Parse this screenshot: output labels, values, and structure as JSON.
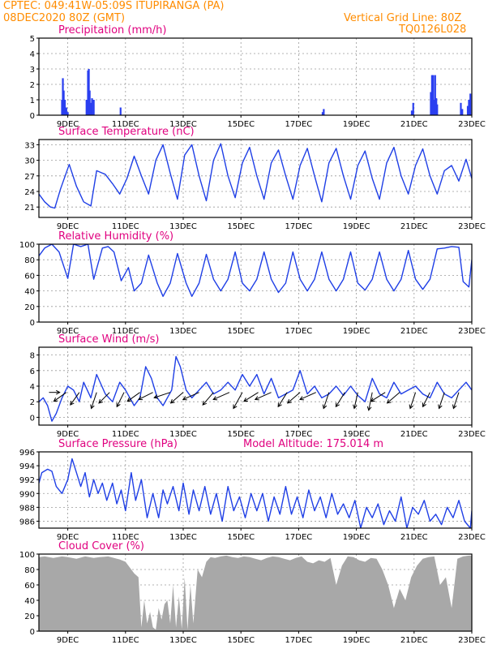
{
  "header": {
    "line1_left": "CPTEC:   049:41W-05:09S   ITUPIRANGA (PA)",
    "line2_left": "08DEC2020 80Z (GMT)",
    "line1_right": "Vertical Grid Line: 80Z",
    "line2_right": "TQ0126L028",
    "color": "#ff8c00"
  },
  "x_ticks": [
    "9DEC",
    "11DEC",
    "13DEC",
    "15DEC",
    "17DEC",
    "19DEC",
    "21DEC",
    "23DEC"
  ],
  "x_days": [
    9,
    11,
    13,
    15,
    17,
    19,
    21,
    23
  ],
  "x_range": [
    8.0,
    23.0
  ],
  "title_color": "#e0007f",
  "line_color": "#1f3fe6",
  "bar_color": "#2a3ff0",
  "cloud_color": "#a8a8a8",
  "chart_data": [
    {
      "id": "precip",
      "type": "bar",
      "title": "Precipitation (mm/h)",
      "ylim": [
        0,
        5
      ],
      "yticks": [
        "0",
        "1",
        "2",
        "3",
        "4",
        "5"
      ],
      "grid": true,
      "x_day": [
        8.8,
        8.83,
        8.86,
        8.9,
        8.95,
        9.0,
        9.65,
        9.7,
        9.73,
        9.76,
        9.8,
        9.84,
        9.9,
        10.83,
        17.83,
        17.87,
        20.92,
        20.97,
        21.58,
        21.62,
        21.66,
        21.7,
        21.73,
        21.77,
        21.8,
        22.62,
        22.67,
        22.86,
        22.9,
        22.95
      ],
      "values": [
        1.0,
        2.4,
        1.6,
        1.0,
        0.5,
        0.2,
        1.0,
        2.9,
        3.0,
        1.6,
        0.8,
        1.1,
        1.0,
        0.5,
        0.2,
        0.4,
        0.3,
        0.8,
        1.5,
        2.6,
        2.6,
        1.0,
        2.6,
        1.1,
        0.7,
        0.8,
        0.4,
        0.6,
        1.0,
        1.4
      ]
    },
    {
      "id": "temp",
      "type": "line",
      "title": "Surface Temperature (nC)",
      "ylim": [
        19,
        34
      ],
      "yticks": [
        "21",
        "24",
        "27",
        "30",
        "33"
      ],
      "grid": true,
      "x": [
        8.0,
        8.2,
        8.4,
        8.55,
        8.75,
        9.05,
        9.3,
        9.55,
        9.8,
        10.0,
        10.3,
        10.55,
        10.8,
        11.05,
        11.3,
        11.55,
        11.8,
        12.05,
        12.3,
        12.55,
        12.8,
        13.05,
        13.3,
        13.55,
        13.8,
        14.05,
        14.3,
        14.55,
        14.8,
        15.05,
        15.3,
        15.55,
        15.8,
        16.05,
        16.3,
        16.55,
        16.8,
        17.05,
        17.3,
        17.55,
        17.8,
        18.05,
        18.3,
        18.55,
        18.8,
        19.05,
        19.3,
        19.55,
        19.8,
        20.05,
        20.3,
        20.55,
        20.8,
        21.05,
        21.3,
        21.55,
        21.8,
        22.05,
        22.3,
        22.55,
        22.8,
        23.0
      ],
      "y": [
        23.5,
        22.0,
        21.0,
        20.8,
        24.5,
        29.2,
        25.0,
        22.0,
        21.2,
        28.0,
        27.3,
        25.5,
        23.5,
        26.5,
        30.8,
        27.0,
        23.5,
        30.0,
        33.0,
        27.5,
        22.5,
        31.0,
        33.0,
        27.0,
        22.2,
        30.0,
        33.2,
        27.0,
        22.8,
        29.5,
        32.5,
        27.0,
        22.5,
        29.5,
        32.0,
        27.0,
        22.5,
        29.0,
        32.3,
        27.0,
        22.0,
        29.5,
        32.3,
        27.0,
        22.5,
        29.0,
        31.8,
        26.5,
        22.5,
        29.5,
        32.5,
        27.0,
        23.5,
        29.0,
        32.2,
        27.0,
        23.5,
        28.0,
        29.0,
        26.0,
        30.2,
        26.5
      ]
    },
    {
      "id": "rh",
      "type": "line",
      "title": "Relative Humidity (%)",
      "ylim": [
        0,
        100
      ],
      "yticks": [
        "0",
        "20",
        "40",
        "60",
        "80",
        "100"
      ],
      "grid": true,
      "x": [
        8.0,
        8.2,
        8.45,
        8.7,
        9.0,
        9.2,
        9.45,
        9.7,
        9.9,
        10.2,
        10.4,
        10.6,
        10.85,
        11.1,
        11.3,
        11.55,
        11.8,
        12.1,
        12.3,
        12.55,
        12.8,
        13.1,
        13.3,
        13.55,
        13.8,
        14.05,
        14.3,
        14.55,
        14.8,
        15.05,
        15.3,
        15.55,
        15.8,
        16.05,
        16.3,
        16.55,
        16.8,
        17.05,
        17.3,
        17.55,
        17.8,
        18.05,
        18.3,
        18.55,
        18.8,
        19.05,
        19.3,
        19.55,
        19.8,
        20.05,
        20.3,
        20.55,
        20.8,
        21.05,
        21.3,
        21.55,
        21.8,
        22.05,
        22.3,
        22.55,
        22.7,
        22.9,
        23.0
      ],
      "y": [
        85,
        95,
        100,
        90,
        56,
        100,
        97,
        100,
        55,
        95,
        97,
        90,
        53,
        70,
        40,
        50,
        86,
        50,
        33,
        50,
        88,
        50,
        33,
        50,
        87,
        55,
        40,
        55,
        90,
        50,
        40,
        55,
        90,
        55,
        38,
        50,
        90,
        55,
        40,
        55,
        90,
        55,
        40,
        55,
        90,
        50,
        41,
        55,
        90,
        55,
        40,
        55,
        92,
        55,
        42,
        55,
        94,
        95,
        97,
        96,
        52,
        45,
        80
      ]
    },
    {
      "id": "wind",
      "type": "line",
      "title": "Surface Wind (m/s)",
      "ylim": [
        -1,
        9
      ],
      "yticks": [
        "0",
        "2",
        "4",
        "6",
        "8"
      ],
      "grid": true,
      "x": [
        8.0,
        8.15,
        8.3,
        8.45,
        8.6,
        8.8,
        9.0,
        9.2,
        9.4,
        9.55,
        9.8,
        10.0,
        10.3,
        10.55,
        10.8,
        11.0,
        11.3,
        11.5,
        11.7,
        11.9,
        12.1,
        12.3,
        12.6,
        12.75,
        12.9,
        13.1,
        13.3,
        13.55,
        13.8,
        14.05,
        14.3,
        14.55,
        14.8,
        15.05,
        15.3,
        15.55,
        15.8,
        16.05,
        16.3,
        16.55,
        16.8,
        17.05,
        17.3,
        17.55,
        17.8,
        18.05,
        18.3,
        18.55,
        18.8,
        19.05,
        19.3,
        19.55,
        19.8,
        20.05,
        20.3,
        20.55,
        20.8,
        21.05,
        21.3,
        21.55,
        21.8,
        22.05,
        22.3,
        22.55,
        22.8,
        23.0
      ],
      "y": [
        2.0,
        2.5,
        1.5,
        -0.5,
        0.5,
        2.5,
        4.0,
        3.5,
        2.0,
        4.5,
        2.5,
        5.5,
        3.0,
        2.0,
        4.5,
        3.5,
        1.5,
        2.5,
        6.5,
        5.0,
        2.5,
        1.5,
        3.5,
        7.8,
        6.5,
        3.5,
        2.5,
        3.5,
        4.5,
        3.0,
        3.5,
        4.5,
        3.5,
        5.5,
        4.0,
        5.5,
        3.0,
        5.0,
        2.5,
        3.0,
        3.5,
        6.0,
        3.0,
        4.0,
        2.5,
        3.0,
        4.0,
        2.8,
        4.0,
        2.8,
        2.0,
        5.0,
        3.0,
        2.5,
        4.5,
        3.0,
        3.5,
        4.0,
        3.0,
        2.5,
        4.5,
        3.0,
        2.5,
        3.5,
        4.5,
        3.5
      ],
      "arrows": {
        "x": [
          8.35,
          8.95,
          9.4,
          10.0,
          10.45,
          10.95,
          11.5,
          11.95,
          12.55,
          13.0,
          13.55,
          14.05,
          14.6,
          15.05,
          15.6,
          16.05,
          16.6,
          17.05,
          17.6,
          18.05,
          18.6,
          19.05,
          19.55,
          20.0,
          20.5,
          21.05,
          21.55,
          22.05,
          22.55
        ],
        "u": [
          0.6,
          -0.7,
          -0.5,
          -0.3,
          -0.6,
          -0.4,
          -0.7,
          -0.8,
          -0.9,
          -0.7,
          -0.9,
          -0.6,
          -0.9,
          -0.5,
          -0.8,
          -0.9,
          -0.5,
          -0.7,
          -0.9,
          -0.3,
          -0.5,
          -0.2,
          -0.2,
          -0.8,
          -0.7,
          -0.3,
          -0.4,
          -0.3,
          -0.3
        ],
        "v": [
          0.0,
          -0.5,
          -0.7,
          -0.9,
          -0.6,
          -0.8,
          -0.5,
          -0.4,
          -0.3,
          -0.6,
          -0.4,
          -0.7,
          -0.4,
          -0.9,
          -0.5,
          -0.4,
          -0.8,
          -0.6,
          -0.4,
          -0.9,
          -0.8,
          -0.9,
          -1.0,
          -0.5,
          -0.6,
          -0.9,
          -0.8,
          -0.9,
          -0.9
        ]
      }
    },
    {
      "id": "pres",
      "type": "line",
      "title": "Surface Pressure (hPa)",
      "extra_label": "Model Altitude: 175.014 m",
      "ylim": [
        985,
        996
      ],
      "yticks": [
        "986",
        "988",
        "990",
        "992",
        "994",
        "996"
      ],
      "grid": true,
      "x": [
        8.0,
        8.1,
        8.3,
        8.45,
        8.6,
        8.8,
        9.0,
        9.15,
        9.3,
        9.45,
        9.6,
        9.75,
        9.9,
        10.05,
        10.2,
        10.35,
        10.55,
        10.7,
        10.85,
        11.0,
        11.2,
        11.35,
        11.55,
        11.75,
        11.95,
        12.15,
        12.3,
        12.45,
        12.65,
        12.85,
        13.0,
        13.2,
        13.35,
        13.55,
        13.75,
        13.95,
        14.15,
        14.35,
        14.55,
        14.75,
        14.95,
        15.15,
        15.35,
        15.55,
        15.75,
        15.95,
        16.15,
        16.35,
        16.55,
        16.75,
        16.95,
        17.15,
        17.35,
        17.55,
        17.75,
        17.95,
        18.15,
        18.35,
        18.55,
        18.75,
        18.95,
        19.15,
        19.35,
        19.55,
        19.75,
        19.95,
        20.15,
        20.35,
        20.55,
        20.75,
        20.95,
        21.15,
        21.35,
        21.55,
        21.75,
        21.95,
        22.15,
        22.35,
        22.55,
        22.75,
        22.95,
        23.0
      ],
      "y": [
        991.5,
        993.0,
        993.5,
        993.2,
        991.0,
        990.0,
        992.0,
        995.0,
        993.0,
        991.0,
        993.0,
        989.5,
        992.0,
        990.0,
        991.5,
        989.0,
        991.5,
        988.5,
        990.5,
        987.5,
        993.0,
        989.0,
        992.0,
        986.5,
        990.0,
        986.5,
        990.5,
        988.5,
        991.0,
        987.5,
        991.5,
        987.0,
        990.5,
        987.5,
        991.0,
        987.0,
        990.0,
        986.0,
        991.0,
        987.5,
        989.5,
        986.5,
        990.0,
        987.5,
        990.0,
        986.0,
        989.5,
        987.0,
        991.0,
        987.0,
        989.5,
        986.5,
        990.5,
        987.5,
        989.5,
        986.5,
        990.0,
        987.0,
        988.5,
        986.5,
        989.0,
        985.0,
        988.0,
        986.5,
        988.5,
        985.5,
        987.5,
        986.0,
        989.5,
        985.0,
        988.0,
        987.0,
        989.0,
        986.0,
        987.0,
        985.5,
        988.0,
        986.5,
        989.0,
        986.0,
        985.0,
        987.5
      ]
    },
    {
      "id": "cloud",
      "type": "area",
      "title": "Cloud Cover (%)",
      "ylim": [
        0,
        100
      ],
      "yticks": [
        "0",
        "20",
        "40",
        "60",
        "80",
        "100"
      ],
      "grid": true,
      "x": [
        8.0,
        8.2,
        8.5,
        8.8,
        9.0,
        9.3,
        9.6,
        9.9,
        10.1,
        10.4,
        10.8,
        11.0,
        11.3,
        11.45,
        11.55,
        11.65,
        11.75,
        11.85,
        11.95,
        12.05,
        12.15,
        12.25,
        12.35,
        12.45,
        12.55,
        12.65,
        12.75,
        12.85,
        12.95,
        13.05,
        13.15,
        13.25,
        13.35,
        13.5,
        13.65,
        13.8,
        13.95,
        14.1,
        14.3,
        14.5,
        14.7,
        14.9,
        15.1,
        15.3,
        15.5,
        15.7,
        15.9,
        16.1,
        16.3,
        16.5,
        16.7,
        16.9,
        17.1,
        17.3,
        17.5,
        17.7,
        17.9,
        18.1,
        18.3,
        18.5,
        18.7,
        18.9,
        19.1,
        19.3,
        19.5,
        19.7,
        19.9,
        20.1,
        20.3,
        20.5,
        20.7,
        20.9,
        21.1,
        21.3,
        21.5,
        21.7,
        21.9,
        22.1,
        22.3,
        22.5,
        22.7,
        22.9,
        23.0
      ],
      "y": [
        96,
        97,
        95,
        97,
        96,
        94,
        97,
        95,
        96,
        97,
        93,
        90,
        75,
        70,
        5,
        40,
        10,
        25,
        5,
        2,
        30,
        15,
        35,
        40,
        10,
        60,
        5,
        45,
        3,
        70,
        2,
        60,
        10,
        80,
        70,
        90,
        96,
        95,
        97,
        98,
        96,
        95,
        97,
        96,
        94,
        92,
        95,
        97,
        96,
        94,
        92,
        95,
        97,
        90,
        88,
        92,
        90,
        95,
        60,
        85,
        97,
        96,
        92,
        90,
        95,
        94,
        80,
        60,
        30,
        55,
        40,
        70,
        85,
        94,
        96,
        97,
        60,
        70,
        30,
        94,
        97,
        98,
        98
      ]
    }
  ]
}
